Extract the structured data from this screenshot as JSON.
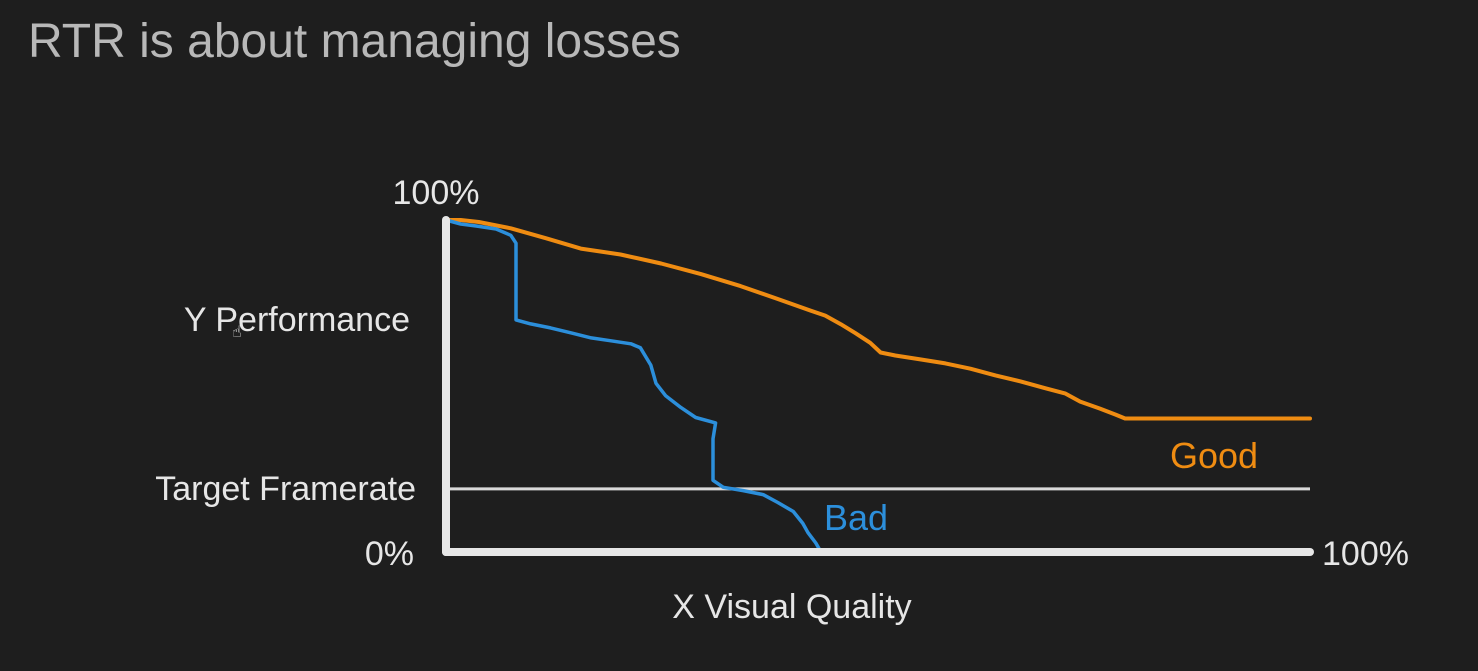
{
  "slide": {
    "title": "RTR is about managing losses"
  },
  "colors": {
    "background": "#1e1e1e",
    "title": "#b8b8b8",
    "axis": "#e6e6e6",
    "label": "#e6e6e6",
    "good": "#ef8c12",
    "bad": "#2c8fdb",
    "target_line": "#d9d9d9"
  },
  "chart_data": {
    "type": "line",
    "title": "",
    "xlabel": "X Visual Quality",
    "ylabel": "Y Performance",
    "xlim": [
      0,
      100
    ],
    "ylim": [
      0,
      100
    ],
    "x_tick_labels": {
      "max": "100%"
    },
    "y_tick_labels": {
      "max": "100%",
      "min": "0%"
    },
    "reference_line": {
      "label": "Target Framerate",
      "y": 19
    },
    "series": [
      {
        "name": "Good",
        "color": "#ef8c12",
        "points": [
          [
            0,
            100
          ],
          [
            1.7,
            100
          ],
          [
            3.8,
            99.4
          ],
          [
            7.5,
            97.5
          ],
          [
            11.6,
            94.5
          ],
          [
            15.6,
            91.4
          ],
          [
            20.2,
            89.6
          ],
          [
            24.9,
            86.9
          ],
          [
            29.5,
            83.7
          ],
          [
            34.1,
            80.1
          ],
          [
            38.2,
            76.4
          ],
          [
            42.2,
            72.7
          ],
          [
            43.9,
            71.2
          ],
          [
            45.7,
            68.6
          ],
          [
            47.4,
            65.9
          ],
          [
            49.1,
            63.0
          ],
          [
            50.3,
            60.1
          ],
          [
            52.0,
            59.2
          ],
          [
            54.9,
            58.0
          ],
          [
            57.8,
            56.8
          ],
          [
            60.7,
            55.2
          ],
          [
            63.6,
            53.2
          ],
          [
            66.5,
            51.4
          ],
          [
            69.4,
            49.3
          ],
          [
            71.7,
            47.7
          ],
          [
            73.4,
            45.3
          ],
          [
            75.7,
            43.2
          ],
          [
            77.5,
            41.4
          ],
          [
            78.6,
            40.2
          ],
          [
            84.4,
            40.2
          ],
          [
            90.2,
            40.2
          ],
          [
            100,
            40.2
          ]
        ]
      },
      {
        "name": "Bad",
        "color": "#2c8fdb",
        "points": [
          [
            0,
            100
          ],
          [
            1.7,
            98.8
          ],
          [
            3.5,
            98.2
          ],
          [
            5.8,
            97.3
          ],
          [
            7.5,
            95.4
          ],
          [
            8.1,
            93.0
          ],
          [
            8.1,
            69.9
          ],
          [
            9.8,
            68.7
          ],
          [
            12.1,
            67.5
          ],
          [
            14.5,
            66.0
          ],
          [
            16.8,
            64.5
          ],
          [
            19.1,
            63.6
          ],
          [
            21.4,
            62.7
          ],
          [
            22.5,
            61.5
          ],
          [
            23.7,
            56.3
          ],
          [
            24.3,
            50.8
          ],
          [
            25.4,
            47.1
          ],
          [
            27.2,
            43.5
          ],
          [
            28.9,
            40.5
          ],
          [
            31.2,
            38.9
          ],
          [
            30.9,
            34.1
          ],
          [
            30.9,
            21.6
          ],
          [
            32.1,
            19.5
          ],
          [
            34.4,
            18.5
          ],
          [
            36.7,
            17.3
          ],
          [
            38.4,
            14.9
          ],
          [
            40.2,
            12.2
          ],
          [
            41.3,
            8.6
          ],
          [
            41.9,
            5.8
          ],
          [
            42.8,
            2.7
          ],
          [
            43.4,
            0
          ]
        ]
      }
    ],
    "series_label_positions": {
      "Good": "right, above target",
      "Bad": "below target"
    },
    "grid": false,
    "legend": "none"
  }
}
